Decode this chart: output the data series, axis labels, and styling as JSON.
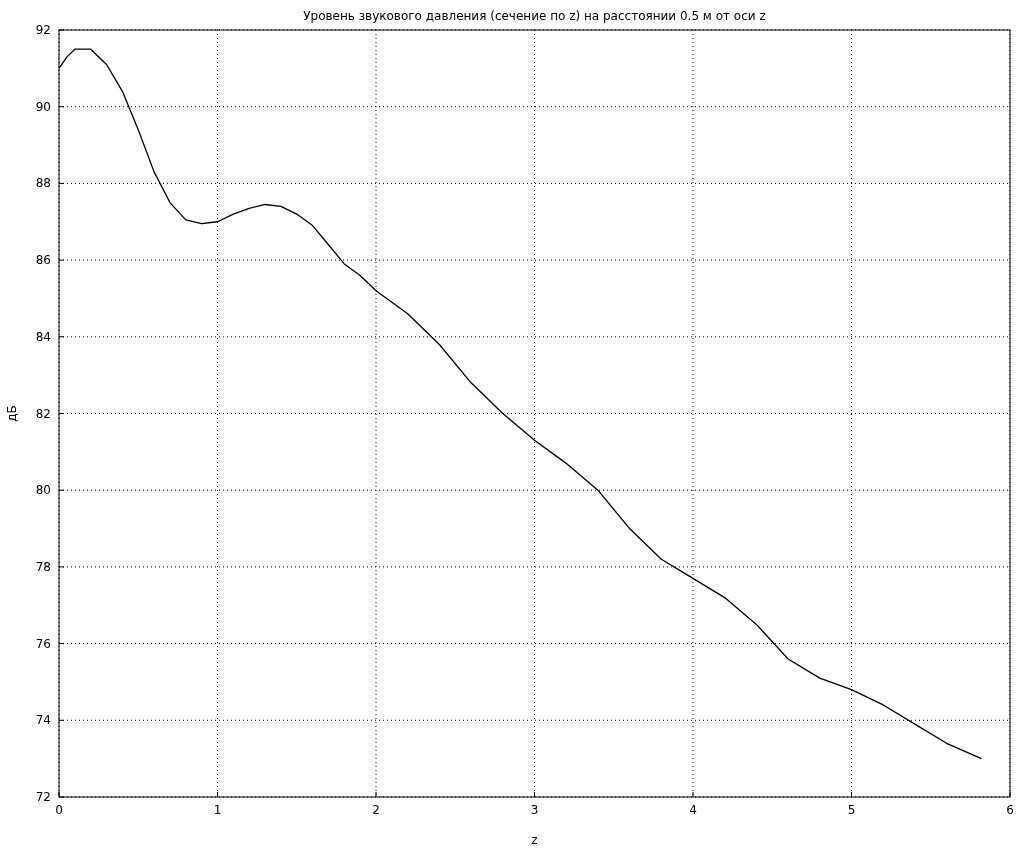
{
  "chart_data": {
    "type": "line",
    "title": "Уровень звукового давления (сечение по z) на расстоянии 0.5 м от оси z",
    "xlabel": "z",
    "ylabel": "дБ",
    "x": [
      0,
      0.05,
      0.1,
      0.2,
      0.3,
      0.4,
      0.5,
      0.6,
      0.7,
      0.8,
      0.9,
      1.0,
      1.1,
      1.2,
      1.3,
      1.4,
      1.5,
      1.6,
      1.7,
      1.8,
      1.9,
      2.0,
      2.2,
      2.4,
      2.6,
      2.8,
      3.0,
      3.2,
      3.4,
      3.6,
      3.8,
      4.0,
      4.2,
      4.4,
      4.6,
      4.8,
      5.0,
      5.2,
      5.4,
      5.6,
      5.82
    ],
    "series": [
      {
        "color": "#000000",
        "values": [
          91.0,
          91.3,
          91.5,
          91.5,
          91.1,
          90.4,
          89.4,
          88.3,
          87.5,
          87.05,
          86.95,
          87.0,
          87.2,
          87.35,
          87.45,
          87.4,
          87.2,
          86.9,
          86.4,
          85.9,
          85.6,
          85.2,
          84.6,
          83.8,
          82.8,
          82.0,
          81.3,
          80.7,
          80.0,
          79.0,
          78.2,
          77.7,
          77.2,
          76.5,
          75.6,
          75.1,
          74.8,
          74.4,
          73.9,
          73.4,
          73.0
        ]
      }
    ],
    "xlim": [
      0,
      6
    ],
    "xticks": [
      0,
      1,
      2,
      3,
      4,
      5,
      6
    ],
    "ylim": [
      72,
      92
    ],
    "yticks": [
      72,
      74,
      76,
      78,
      80,
      82,
      84,
      86,
      88,
      90,
      92
    ],
    "grid": true,
    "line_style": "solid",
    "marker": "none"
  }
}
